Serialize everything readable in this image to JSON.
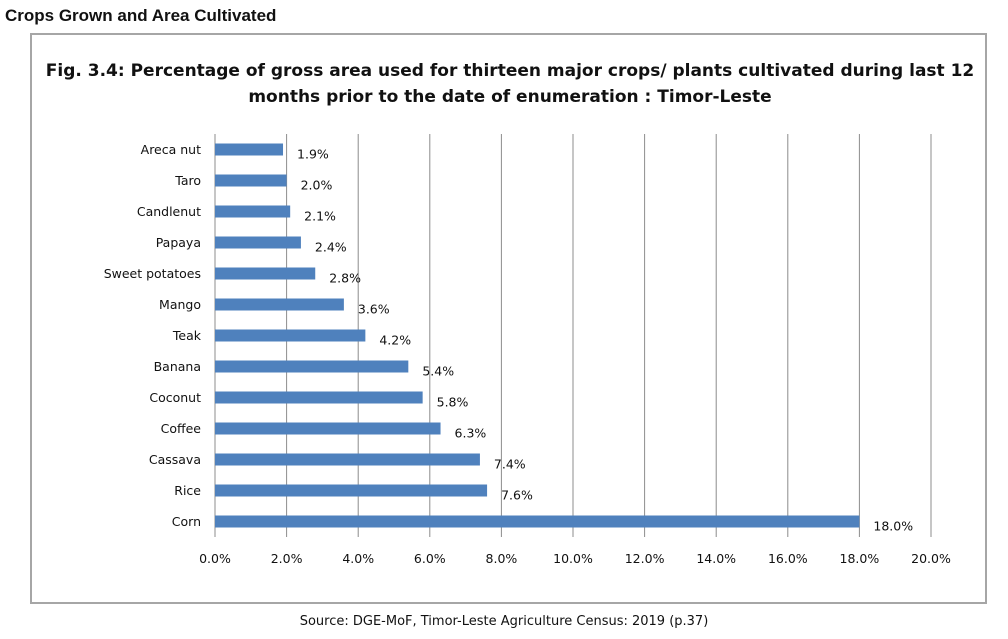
{
  "page": {
    "heading": "Crops Grown and Area Cultivated",
    "source": "Source: DGE-MoF, Timor-Leste Agriculture Census: 2019 (p.37)"
  },
  "chart_data": {
    "type": "bar",
    "orientation": "horizontal",
    "title": "Fig. 3.4: Percentage of gross area used for thirteen major crops/ plants cultivated during last  12 months prior to the date of enumeration : Timor-Leste",
    "title_line1": "Fig. 3.4: Percentage of gross area used for thirteen major crops/ plants cultivated during last  12",
    "title_line2": "months prior to the date of enumeration : Timor-Leste",
    "categories": [
      "Areca nut",
      "Taro",
      "Candlenut",
      "Papaya",
      "Sweet potatoes",
      "Mango",
      "Teak",
      "Banana",
      "Coconut",
      "Coffee",
      "Cassava",
      "Rice",
      "Corn"
    ],
    "values": [
      1.9,
      2.0,
      2.1,
      2.4,
      2.8,
      3.6,
      4.2,
      5.4,
      5.8,
      6.3,
      7.4,
      7.6,
      18.0
    ],
    "value_labels": [
      "1.9%",
      "2.0%",
      "2.1%",
      "2.4%",
      "2.8%",
      "3.6%",
      "4.2%",
      "5.4%",
      "5.8%",
      "6.3%",
      "7.4%",
      "7.6%",
      "18.0%"
    ],
    "xlim": [
      0,
      20
    ],
    "x_ticks": [
      0,
      2,
      4,
      6,
      8,
      10,
      12,
      14,
      16,
      18,
      20
    ],
    "x_tick_labels": [
      "0.0%",
      "2.0%",
      "4.0%",
      "6.0%",
      "8.0%",
      "10.0%",
      "12.0%",
      "14.0%",
      "16.0%",
      "18.0%",
      "20.0%"
    ],
    "xlabel": "",
    "ylabel": "",
    "grid": "vertical",
    "legend": "none",
    "bar_color": "#4f81bd",
    "grid_color": "#8c8c8c"
  }
}
